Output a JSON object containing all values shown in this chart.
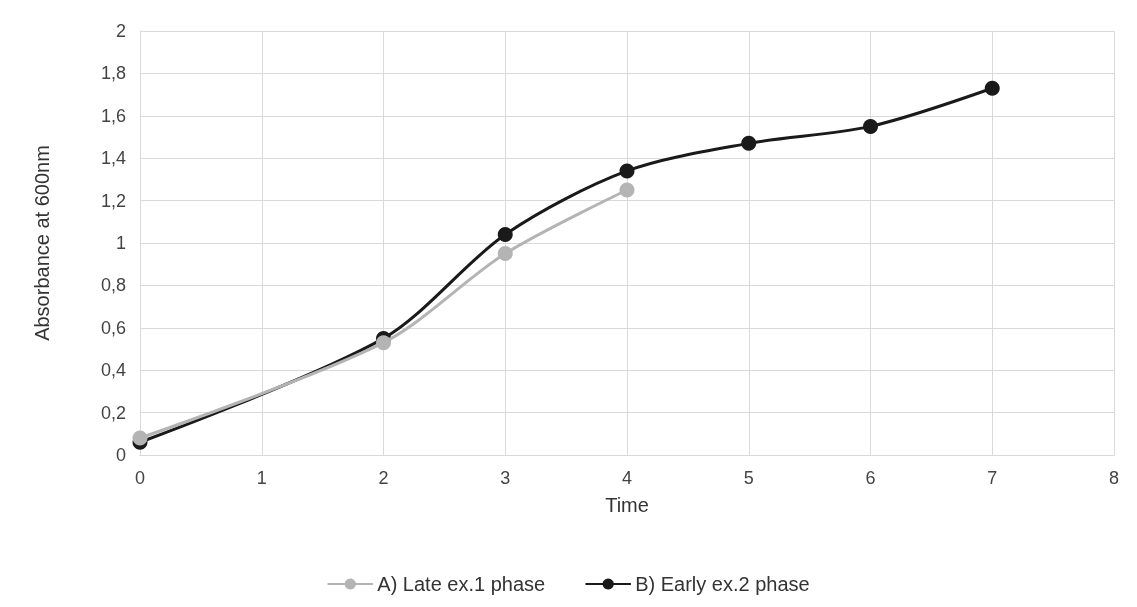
{
  "chart_data": {
    "type": "line",
    "xlabel": "Time",
    "ylabel": "Absorbance at 600nm",
    "xlim": [
      0,
      8
    ],
    "xticks": [
      0,
      1,
      2,
      3,
      4,
      5,
      6,
      7,
      8
    ],
    "ylim": [
      0,
      2
    ],
    "yticks": [
      0,
      {
        "value": 0.2,
        "label": "0,2"
      },
      {
        "value": 0.4,
        "label": "0,4"
      },
      {
        "value": 0.6,
        "label": "0,6"
      },
      {
        "value": 0.8,
        "label": "0,8"
      },
      1,
      {
        "value": 1.2,
        "label": "1,2"
      },
      {
        "value": 1.4,
        "label": "1,4"
      },
      {
        "value": 1.6,
        "label": "1,6"
      },
      {
        "value": 1.8,
        "label": "1,8"
      },
      2
    ],
    "grid": true,
    "legend": "bottom",
    "marker": "circle",
    "line_style": "solid",
    "series": [
      {
        "name": "A) Late ex.1 phase",
        "color": "#b4b4b4",
        "x": [
          0,
          2,
          3,
          4
        ],
        "values": [
          0.08,
          0.53,
          0.95,
          1.25
        ]
      },
      {
        "name": "B) Early ex.2 phase",
        "color": "#1a1a1a",
        "x": [
          0,
          2,
          3,
          4,
          5,
          6,
          7
        ],
        "values": [
          0.06,
          0.55,
          1.04,
          1.34,
          1.47,
          1.55,
          1.73
        ]
      }
    ]
  }
}
